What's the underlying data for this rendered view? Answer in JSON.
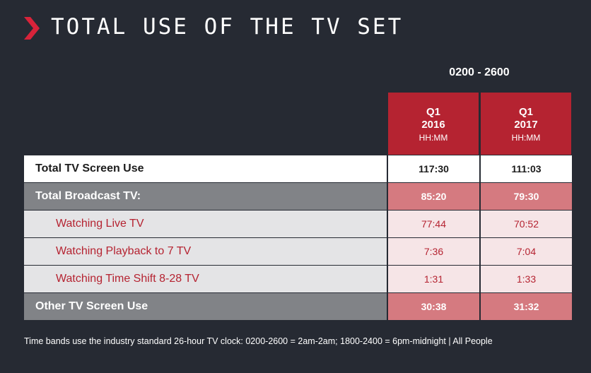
{
  "header": {
    "title": "TOTAL USE OF THE TV SET"
  },
  "time_range": "0200 - 2600",
  "columns": [
    {
      "quarter": "Q1",
      "year": "2016",
      "unit": "HH:MM"
    },
    {
      "quarter": "Q1",
      "year": "2017",
      "unit": "HH:MM"
    }
  ],
  "rows": [
    {
      "label": "Total TV Screen Use",
      "values": [
        "117:30",
        "111:03"
      ]
    },
    {
      "label": "Total Broadcast TV:",
      "values": [
        "85:20",
        "79:30"
      ]
    },
    {
      "label": "Watching Live TV",
      "values": [
        "77:44",
        "70:52"
      ]
    },
    {
      "label": "Watching Playback to 7 TV",
      "values": [
        "7:36",
        "7:04"
      ]
    },
    {
      "label": "Watching Time Shift 8-28 TV",
      "values": [
        "1:31",
        "1:33"
      ]
    },
    {
      "label": "Other TV Screen Use",
      "values": [
        "30:38",
        "31:32"
      ]
    }
  ],
  "footnote": "Time bands use the industry standard 26-hour TV clock: 0200-2600 = 2am-2am; 1800-2400 = 6pm-midnight | All People",
  "colors": {
    "background": "#262a33",
    "accent_red": "#b52331",
    "gray": "#818387",
    "pink": "#d57a80",
    "light_pink": "#f6e5e7",
    "light_gray": "#e4e4e6"
  },
  "icons": {
    "title_marker": "chevron-right-icon"
  }
}
